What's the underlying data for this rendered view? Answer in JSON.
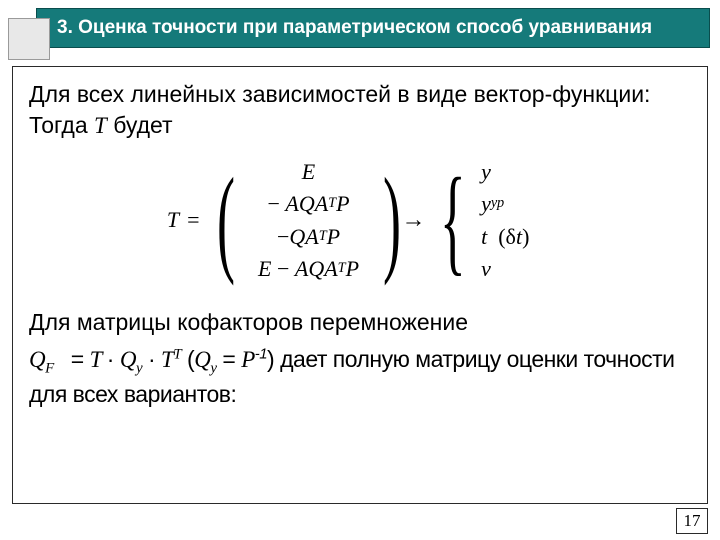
{
  "header": {
    "title": "3. Оценка точности при параметрическом  способ уравнивания",
    "bar_color": "#157a7a",
    "text_color": "#ffffff"
  },
  "body": {
    "intro_line": "Для всех линейных зависимостей в виде вектор-функции: Тогда ",
    "intro_T": "T",
    "intro_tail": " будет",
    "matrix": {
      "lhs": "T",
      "rows": [
        "E",
        "− AQA",
        "−QA",
        "E − AQA"
      ],
      "row_sup": [
        "",
        "T",
        "T",
        "T"
      ],
      "row_tail": [
        "",
        " P",
        " P",
        " P"
      ],
      "maps_to": [
        "y",
        "y",
        "t  (δt)",
        "v"
      ],
      "maps_to_sub": [
        "",
        "ур",
        "",
        ""
      ]
    },
    "cofactor_line": "Для матрицы кофакторов перемножение",
    "formula": {
      "QF": "Q",
      "QF_sub": "F",
      "eq": " = ",
      "T1": "T",
      "dot1": " · ",
      "Qy": "Q",
      "Qy_sub": "y",
      "dot2": " · ",
      "T2": "T",
      "T2_sup": "T",
      "open": " (",
      "Qy2": "Q",
      "Qy2_sub": "y",
      "eq2": " = ",
      "P": "P",
      "P_sup": "-1",
      "close": ") "
    },
    "tail_line": "дает полную матрицу оценки точности для всех вариантов:"
  },
  "page_number": "17"
}
